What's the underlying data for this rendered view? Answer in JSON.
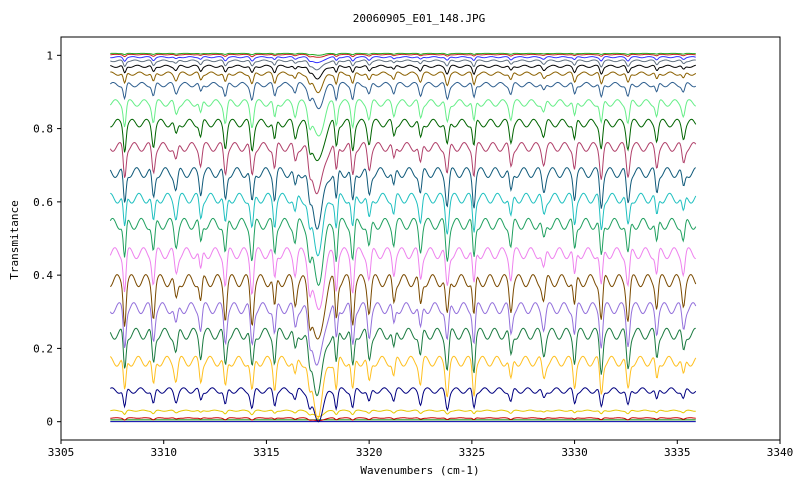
{
  "chart_data": {
    "type": "line",
    "title": "20060905_E01_148.JPG",
    "xlabel": "Wavenumbers (cm-1)",
    "ylabel": "Transmitance",
    "xlim": [
      3305,
      3340
    ],
    "ylim": [
      -0.05,
      1.05
    ],
    "x_ticks": [
      "3305",
      "3310",
      "3315",
      "3320",
      "3325",
      "3330",
      "3335",
      "3340"
    ],
    "y_ticks": [
      "0",
      "0.2",
      "0.4",
      "0.6",
      "0.8",
      "1"
    ],
    "grid": false,
    "x_range_data": [
      3307.4,
      3335.9
    ],
    "broad_dip_center": 3317.5,
    "line_positions": [
      3308.1,
      3309.5,
      3310.6,
      3311.8,
      3313.0,
      3314.3,
      3315.4,
      3316.4,
      3317.1,
      3318.4,
      3319.2,
      3320.0,
      3321.2,
      3322.5,
      3323.8,
      3325.1,
      3326.9,
      3328.5,
      3330.0,
      3331.3,
      3332.6,
      3334.0,
      3335.3
    ],
    "series": [
      {
        "baseline": 0.0,
        "dip_depth": 0.0,
        "color": "#0000aa"
      },
      {
        "baseline": 0.005,
        "dip_depth": 0.0,
        "color": "#008800"
      },
      {
        "baseline": 0.01,
        "dip_depth": 0.005,
        "color": "#cc0000"
      },
      {
        "baseline": 0.03,
        "dip_depth": 0.01,
        "color": "#e6c800"
      },
      {
        "baseline": 0.085,
        "dip_depth": 0.05,
        "color": "#000080"
      },
      {
        "baseline": 0.165,
        "dip_depth": 0.09,
        "color": "#ffc020"
      },
      {
        "baseline": 0.24,
        "dip_depth": 0.1,
        "color": "#1a7a40"
      },
      {
        "baseline": 0.31,
        "dip_depth": 0.1,
        "color": "#9370db"
      },
      {
        "baseline": 0.385,
        "dip_depth": 0.11,
        "color": "#7a4a00"
      },
      {
        "baseline": 0.46,
        "dip_depth": 0.1,
        "color": "#ee82ee"
      },
      {
        "baseline": 0.54,
        "dip_depth": 0.1,
        "color": "#20a060"
      },
      {
        "baseline": 0.61,
        "dip_depth": 0.09,
        "color": "#20c0c0"
      },
      {
        "baseline": 0.68,
        "dip_depth": 0.09,
        "color": "#105a7a"
      },
      {
        "baseline": 0.75,
        "dip_depth": 0.08,
        "color": "#b0406a"
      },
      {
        "baseline": 0.815,
        "dip_depth": 0.07,
        "color": "#006400"
      },
      {
        "baseline": 0.87,
        "dip_depth": 0.06,
        "color": "#66ee88"
      },
      {
        "baseline": 0.92,
        "dip_depth": 0.04,
        "color": "#2f5f8f"
      },
      {
        "baseline": 0.95,
        "dip_depth": 0.03,
        "color": "#8b6000"
      },
      {
        "baseline": 0.97,
        "dip_depth": 0.02,
        "color": "#000000"
      },
      {
        "baseline": 0.985,
        "dip_depth": 0.015,
        "color": "#607080"
      },
      {
        "baseline": 0.995,
        "dip_depth": 0.01,
        "color": "#3030ff"
      },
      {
        "baseline": 1.002,
        "dip_depth": 0.005,
        "color": "#cc2222"
      },
      {
        "baseline": 1.005,
        "dip_depth": 0.003,
        "color": "#22aa22"
      }
    ]
  }
}
